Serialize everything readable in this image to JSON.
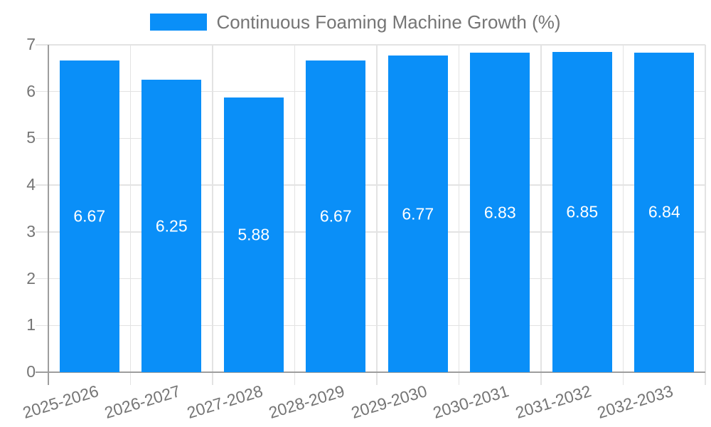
{
  "legend": {
    "label": "Continuous Foaming Machine Growth (%)"
  },
  "chart_data": {
    "type": "bar",
    "title": "Continuous Foaming Machine Growth (%)",
    "categories": [
      "2025-2026",
      "2026-2027",
      "2027-2028",
      "2028-2029",
      "2029-2030",
      "2030-2031",
      "2031-2032",
      "2032-2033"
    ],
    "values": [
      6.67,
      6.25,
      5.88,
      6.67,
      6.77,
      6.83,
      6.85,
      6.84
    ],
    "value_labels": [
      "6.67",
      "6.25",
      "5.88",
      "6.67",
      "6.77",
      "6.83",
      "6.85",
      "6.84"
    ],
    "xlabel": "",
    "ylabel": "",
    "ylim": [
      0,
      7
    ],
    "yticks": [
      0,
      1,
      2,
      3,
      4,
      5,
      6,
      7
    ],
    "grid": true,
    "legend_position": "top",
    "bar_label_position": "center",
    "x_label_rotation_deg": -17
  },
  "colors": {
    "bar": "#0a8ff8",
    "bar_label": "#ffffff",
    "axis_line": "#9e9e9e",
    "grid_line": "#e3e3e3",
    "axis_text": "#757575",
    "legend_text": "#757575",
    "background": "#ffffff"
  }
}
